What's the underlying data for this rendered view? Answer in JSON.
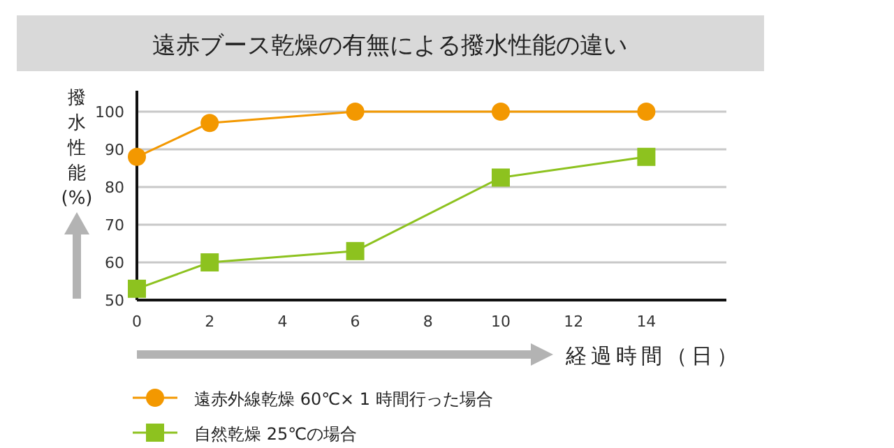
{
  "chart_data": {
    "type": "line",
    "title": "遠赤ブース乾燥の有無による撥水性能の違い",
    "xlabel": "経過時間（日）",
    "ylabel": "撥水性能(%)",
    "series": [
      {
        "name": "遠赤外線乾燥 60℃× 1 時間行った場合",
        "color": "#f39800",
        "marker": "circle",
        "x": [
          0,
          2,
          6,
          10,
          14
        ],
        "values": [
          88,
          97,
          100,
          100,
          100
        ]
      },
      {
        "name": "自然乾燥 25℃の場合",
        "color": "#8dc21f",
        "marker": "square",
        "x": [
          0,
          2,
          6,
          10,
          14
        ],
        "values": [
          53,
          60,
          63,
          82.5,
          88
        ]
      }
    ],
    "xlim": [
      0,
      16.2
    ],
    "xticks": [
      0,
      2,
      4,
      6,
      8,
      10,
      12,
      14
    ],
    "ylim": [
      50,
      100
    ],
    "yticks": [
      50,
      60,
      70,
      80,
      90,
      100
    ],
    "grid": "y",
    "legend": "bottom left"
  }
}
